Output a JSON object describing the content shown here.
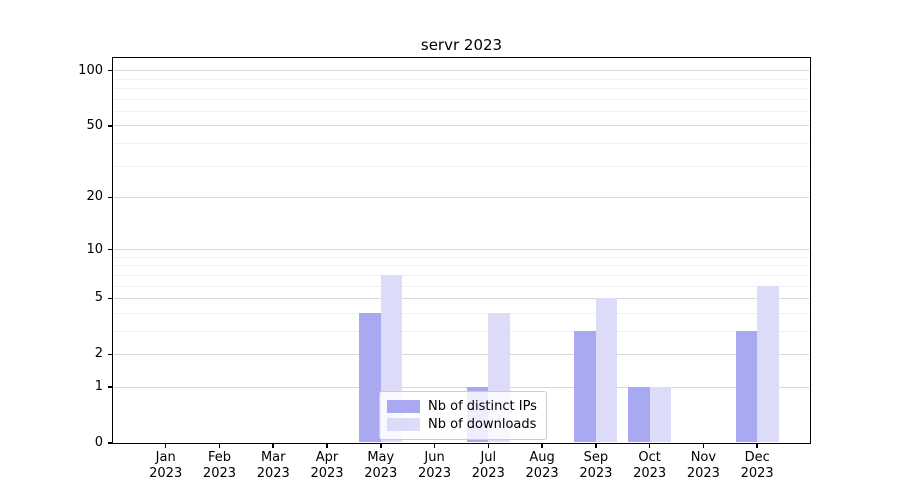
{
  "chart_data": {
    "type": "bar",
    "title": "servr 2023",
    "categories": [
      "Jan 2023",
      "Feb 2023",
      "Mar 2023",
      "Apr 2023",
      "May 2023",
      "Jun 2023",
      "Jul 2023",
      "Aug 2023",
      "Sep 2023",
      "Oct 2023",
      "Nov 2023",
      "Dec 2023"
    ],
    "series": [
      {
        "name": "Nb of distinct IPs",
        "color": "#a9a9f2",
        "values": [
          0,
          0,
          0,
          0,
          4,
          0,
          1,
          0,
          3,
          1,
          0,
          3
        ]
      },
      {
        "name": "Nb of downloads",
        "color": "#dcdcf9",
        "values": [
          0,
          0,
          0,
          0,
          7,
          0,
          4,
          0,
          5,
          1,
          0,
          6
        ]
      }
    ],
    "xlabel": "",
    "ylabel": "",
    "yscale": "log1p",
    "ylim": [
      0,
      118
    ],
    "yticks": [
      0,
      1,
      2,
      5,
      10,
      20,
      50,
      100
    ],
    "minor_yticks": [
      3,
      4,
      6,
      7,
      8,
      9,
      30,
      40,
      60,
      70,
      80,
      90
    ],
    "grid": true,
    "legend_position": "lower center"
  },
  "colors": {
    "series_ips": "#a9a9f2",
    "series_downloads": "#dcdcf9",
    "grid_major": "#d9d9d9",
    "grid_minor": "#f0f0f0",
    "spine": "#000000"
  }
}
